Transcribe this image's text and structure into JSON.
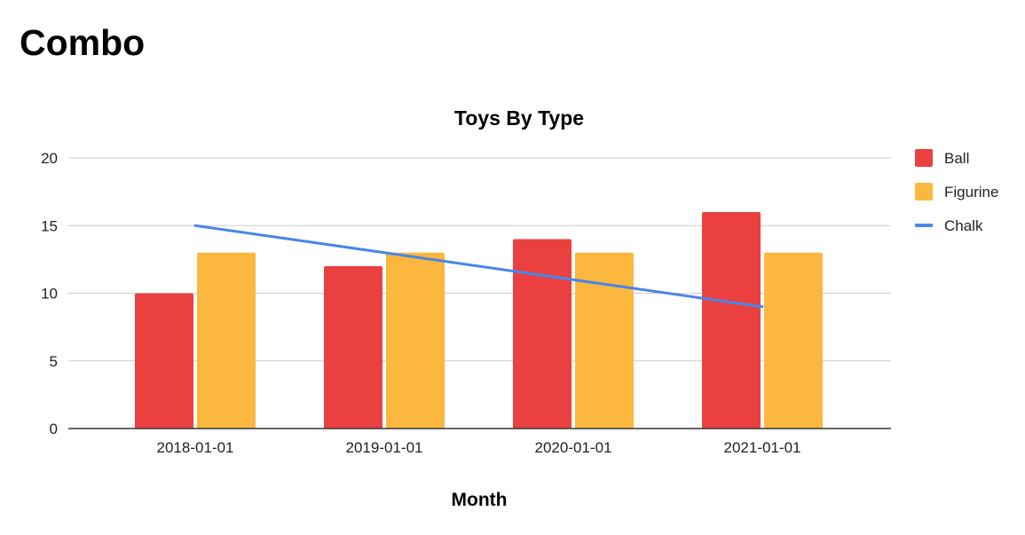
{
  "page": {
    "title": "Combo"
  },
  "chart_data": {
    "type": "bar",
    "title": "Toys By Type",
    "xlabel": "Month",
    "ylabel": "",
    "ylim": [
      0,
      20
    ],
    "yticks": [
      0,
      5,
      10,
      15,
      20
    ],
    "categories": [
      "2018-01-01",
      "2019-01-01",
      "2020-01-01",
      "2021-01-01"
    ],
    "series": [
      {
        "name": "Ball",
        "type": "bar",
        "color": "#ea4040",
        "values": [
          10,
          12,
          14,
          16
        ]
      },
      {
        "name": "Figurine",
        "type": "bar",
        "color": "#fbb73e",
        "values": [
          13,
          13,
          13,
          13
        ]
      },
      {
        "name": "Chalk",
        "type": "line",
        "color": "#4a86e8",
        "values": [
          15,
          null,
          null,
          9
        ]
      }
    ],
    "grid": true,
    "legend_position": "right"
  }
}
